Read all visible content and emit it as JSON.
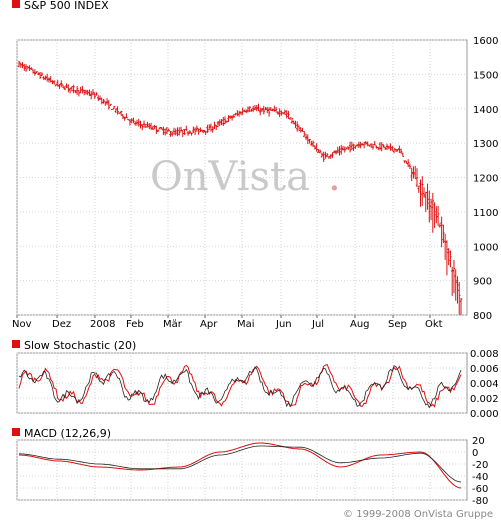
{
  "brand": {
    "watermark_left": "OnVista",
    "watermark_dot": ".",
    "copyright": "© 1999-2008 OnVista Gruppe"
  },
  "colors": {
    "series_red": "#dd1111",
    "secondary_line": "#222222",
    "panel_border": "#999999",
    "grid": "#d6d6d6",
    "watermark": "#c9c9c9",
    "watermark_dot": "#e2a0a0"
  },
  "chart_data": [
    {
      "type": "candlestick",
      "title": "S&P 500 INDEX",
      "legend_label": "S&P 500 INDEX",
      "x": {
        "tick_labels": [
          "Nov",
          "Dez",
          "2008",
          "Feb",
          "Mär",
          "Apr",
          "Mai",
          "Jun",
          "Jul",
          "Aug",
          "Sep",
          "Okt"
        ]
      },
      "ylim": [
        800,
        1600
      ],
      "y_ticks": [
        800,
        900,
        1000,
        1100,
        1200,
        1300,
        1400,
        1500,
        1600
      ],
      "grid": true,
      "series_close_approx": {
        "x": [
          "Nov",
          "Dez",
          "2008",
          "Feb",
          "Mär",
          "Apr",
          "Mai",
          "Jun",
          "Jul",
          "Aug",
          "Sep",
          "Okt"
        ],
        "values": [
          1530,
          1470,
          1440,
          1360,
          1330,
          1340,
          1400,
          1390,
          1260,
          1300,
          1280,
          1090
        ]
      },
      "last_value_approx": 850
    },
    {
      "type": "line",
      "title": "Slow Stochastic (20)",
      "legend_label": "Slow Stochastic (20)",
      "ylim": [
        0,
        0.008
      ],
      "y_ticks": [
        "0.000",
        "0.002",
        "0.004",
        "0.006",
        "0.008"
      ],
      "grid": true,
      "series_count": 2
    },
    {
      "type": "line",
      "title": "MACD (12,26,9)",
      "legend_label": "MACD (12,26,9)",
      "ylim": [
        -80,
        20
      ],
      "y_ticks": [
        "-80",
        "-60",
        "-40",
        "-20",
        "0",
        "20"
      ],
      "grid": true,
      "series_count": 2,
      "series_approx": {
        "x": [
          "Nov",
          "Dez",
          "2008",
          "Feb",
          "Mär",
          "Apr",
          "Mai",
          "Jun",
          "Jul",
          "Aug",
          "Sep",
          "Okt"
        ],
        "macd": [
          -5,
          -15,
          -25,
          -30,
          -25,
          0,
          15,
          5,
          -25,
          -5,
          0,
          -60
        ],
        "signal": [
          -3,
          -12,
          -20,
          -28,
          -28,
          -5,
          10,
          8,
          -18,
          -10,
          -2,
          -50
        ]
      }
    }
  ]
}
